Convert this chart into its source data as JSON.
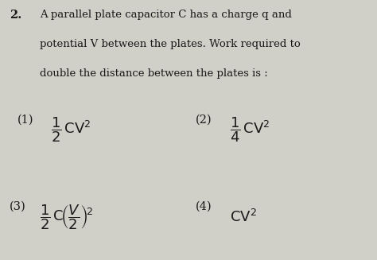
{
  "bg_color": "#d0cfc8",
  "text_color": "#1a1a1a",
  "question_number": "2.",
  "question_line1": "A parallel plate capacitor C has a charge q and",
  "question_line2": "potential V between the plates. Work required to",
  "question_line3": "double the distance between the plates is :",
  "figsize": [
    4.74,
    3.27
  ],
  "dpi": 100
}
